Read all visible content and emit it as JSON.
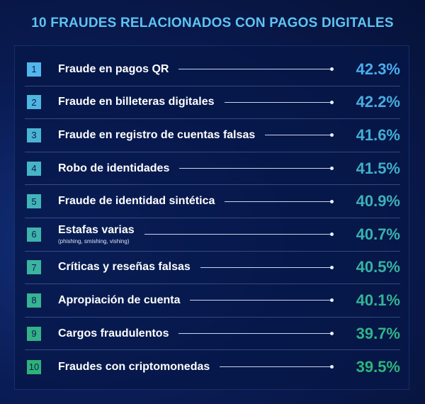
{
  "title": "10 FRAUDES RELACIONADOS CON PAGOS DIGITALES",
  "items": [
    {
      "rank": 1,
      "label": "Fraude en pagos QR",
      "value": "42.3%"
    },
    {
      "rank": 2,
      "label": "Fraude en billeteras digitales",
      "value": "42.2%"
    },
    {
      "rank": 3,
      "label": "Fraude en registro de cuentas falsas",
      "value": "41.6%"
    },
    {
      "rank": 4,
      "label": "Robo de identidades",
      "value": "41.5%"
    },
    {
      "rank": 5,
      "label": "Fraude de identidad sintética",
      "value": "40.9%"
    },
    {
      "rank": 6,
      "label": "Estafas varias",
      "sublabel": "(phishing, smishing, vishing)",
      "value": "40.7%"
    },
    {
      "rank": 7,
      "label": "Críticas y reseñas falsas",
      "value": "40.5%"
    },
    {
      "rank": 8,
      "label": "Apropiación de cuenta",
      "value": "40.1%"
    },
    {
      "rank": 9,
      "label": "Cargos fraudulentos",
      "value": "39.7%"
    },
    {
      "rank": 10,
      "label": "Fraudes con criptomonedas",
      "value": "39.5%"
    }
  ]
}
